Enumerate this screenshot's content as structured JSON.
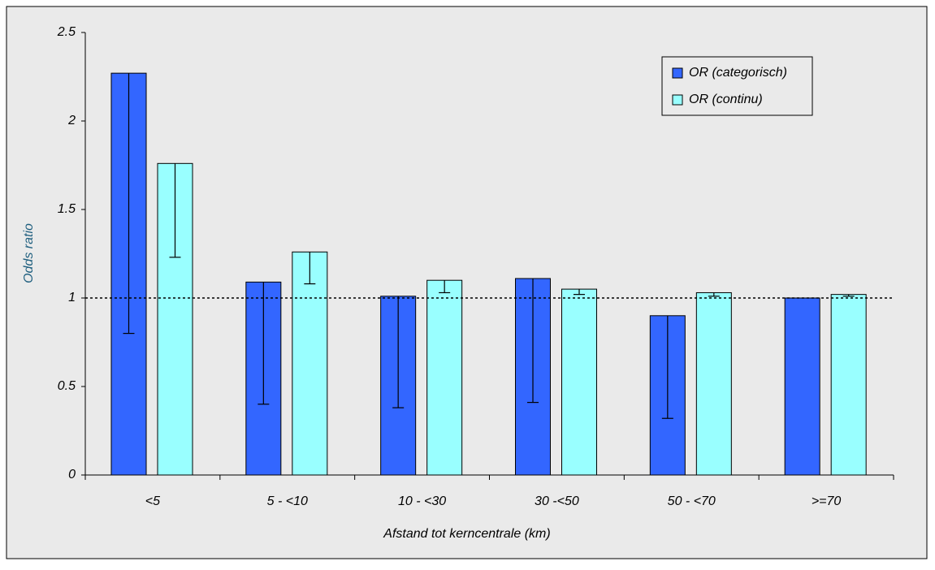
{
  "chart_data": {
    "type": "bar",
    "x_label": "Afstand tot kerncentrale (km)",
    "y_label": "Odds ratio",
    "categories": [
      "<5",
      "5 - <10",
      "10 - <30",
      "30 -<50",
      "50 - <70",
      ">=70"
    ],
    "series": [
      {
        "name": "OR (categorisch)",
        "color": "#3366ff",
        "values": [
          2.27,
          1.09,
          1.01,
          1.11,
          0.9,
          1.0
        ],
        "errors": [
          1.47,
          0.69,
          0.63,
          0.7,
          0.58,
          0
        ]
      },
      {
        "name": "OR (continu)",
        "color": "#99ffff",
        "values": [
          1.76,
          1.26,
          1.1,
          1.05,
          1.03,
          1.02
        ],
        "errors": [
          0.53,
          0.18,
          0.07,
          0.03,
          0.02,
          0.01
        ]
      }
    ],
    "ylim": [
      0,
      2.5
    ],
    "yticks": [
      0,
      0.5,
      1,
      1.5,
      2,
      2.5
    ],
    "reference_line": 1,
    "legend": "top-right"
  }
}
